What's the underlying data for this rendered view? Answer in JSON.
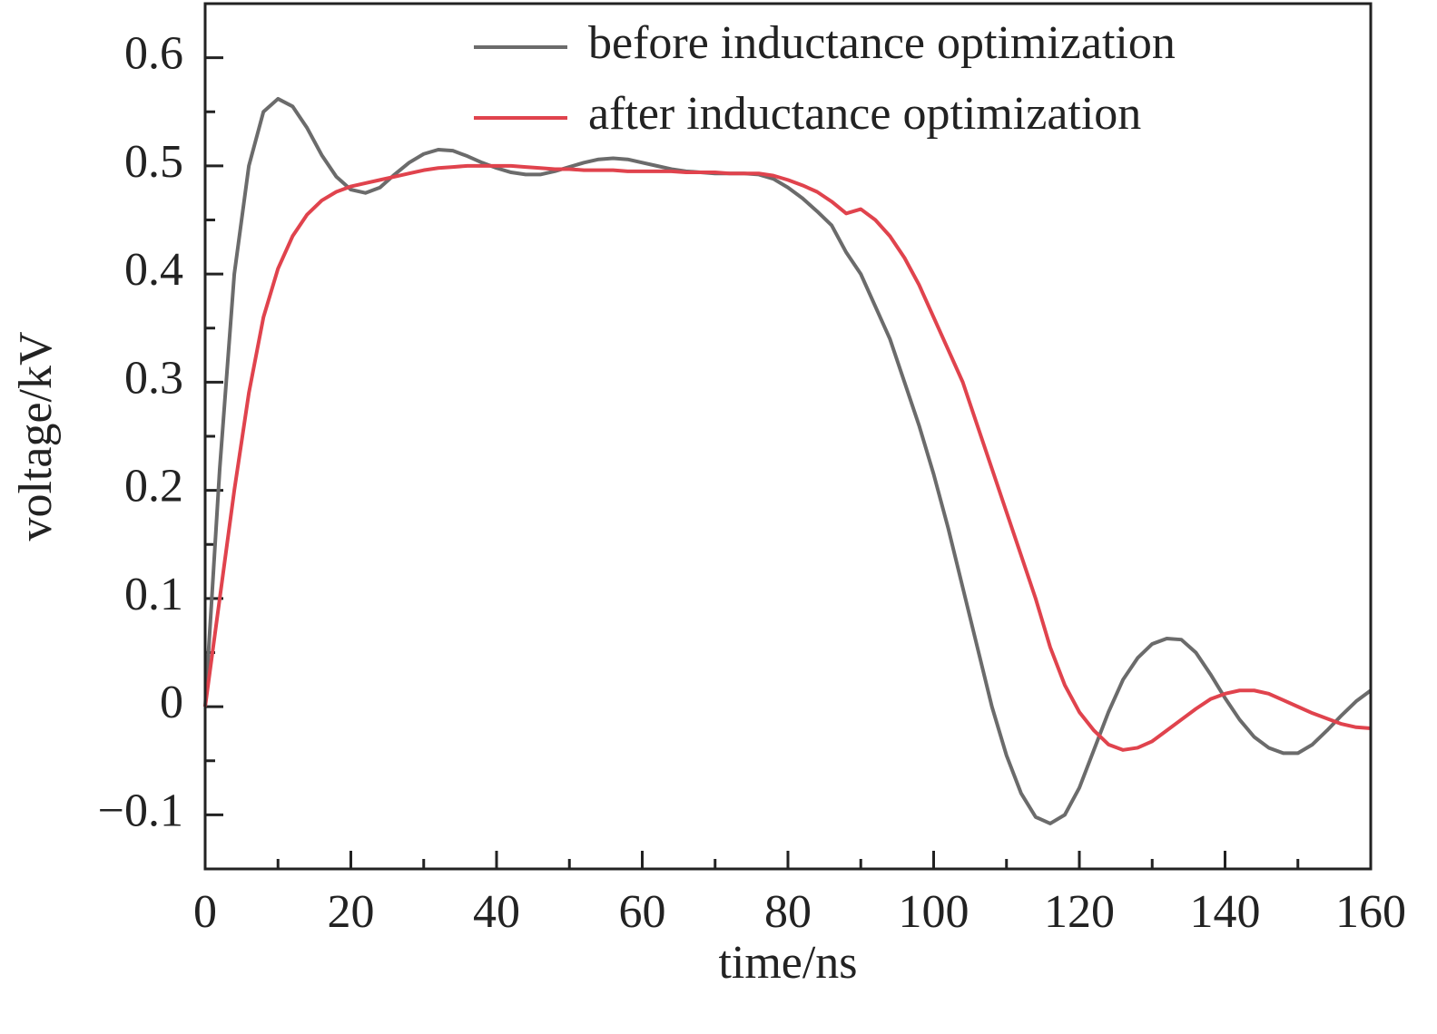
{
  "chart_data": {
    "type": "line",
    "xlabel": "time/ns",
    "ylabel": "voltage/kV",
    "x": [
      0,
      2,
      4,
      6,
      8,
      10,
      12,
      14,
      16,
      18,
      20,
      22,
      24,
      26,
      28,
      30,
      32,
      34,
      36,
      38,
      40,
      42,
      44,
      46,
      48,
      50,
      52,
      54,
      56,
      58,
      60,
      62,
      64,
      66,
      68,
      70,
      72,
      74,
      76,
      78,
      80,
      82,
      84,
      86,
      88,
      90,
      92,
      94,
      96,
      98,
      100,
      102,
      104,
      106,
      108,
      110,
      112,
      114,
      116,
      118,
      120,
      122,
      124,
      126,
      128,
      130,
      132,
      134,
      136,
      138,
      140,
      142,
      144,
      146,
      148,
      150,
      152,
      154,
      156,
      158,
      160
    ],
    "series": [
      {
        "name": "before inductance optimization",
        "color": "#6b6b6b",
        "values": [
          0,
          0.22,
          0.4,
          0.5,
          0.55,
          0.562,
          0.555,
          0.535,
          0.51,
          0.49,
          0.478,
          0.475,
          0.48,
          0.492,
          0.503,
          0.511,
          0.515,
          0.514,
          0.509,
          0.503,
          0.498,
          0.494,
          0.492,
          0.492,
          0.495,
          0.499,
          0.503,
          0.506,
          0.507,
          0.506,
          0.503,
          0.5,
          0.497,
          0.495,
          0.494,
          0.493,
          0.493,
          0.493,
          0.492,
          0.488,
          0.48,
          0.47,
          0.458,
          0.445,
          0.42,
          0.4,
          0.37,
          0.34,
          0.3,
          0.26,
          0.215,
          0.165,
          0.11,
          0.055,
          0.0,
          -0.045,
          -0.08,
          -0.102,
          -0.108,
          -0.1,
          -0.075,
          -0.04,
          -0.005,
          0.025,
          0.045,
          0.058,
          0.063,
          0.062,
          0.05,
          0.03,
          0.008,
          -0.012,
          -0.028,
          -0.038,
          -0.043,
          -0.043,
          -0.035,
          -0.022,
          -0.008,
          0.005,
          0.015
        ]
      },
      {
        "name": "after inductance optimization",
        "color": "#e0434d",
        "values": [
          0,
          0.1,
          0.2,
          0.29,
          0.36,
          0.405,
          0.435,
          0.455,
          0.468,
          0.476,
          0.481,
          0.484,
          0.487,
          0.49,
          0.493,
          0.496,
          0.498,
          0.499,
          0.5,
          0.5,
          0.5,
          0.5,
          0.499,
          0.498,
          0.497,
          0.497,
          0.496,
          0.496,
          0.496,
          0.495,
          0.495,
          0.495,
          0.495,
          0.494,
          0.494,
          0.494,
          0.493,
          0.493,
          0.493,
          0.491,
          0.487,
          0.482,
          0.476,
          0.467,
          0.456,
          0.46,
          0.45,
          0.435,
          0.415,
          0.39,
          0.36,
          0.33,
          0.3,
          0.26,
          0.22,
          0.18,
          0.14,
          0.1,
          0.055,
          0.02,
          -0.005,
          -0.022,
          -0.035,
          -0.04,
          -0.038,
          -0.032,
          -0.022,
          -0.012,
          -0.002,
          0.007,
          0.012,
          0.015,
          0.015,
          0.012,
          0.006,
          0.0,
          -0.006,
          -0.011,
          -0.016,
          -0.019,
          -0.02
        ]
      }
    ],
    "xlim": [
      0,
      160
    ],
    "xticks": [
      0,
      20,
      40,
      60,
      80,
      100,
      120,
      140,
      160
    ],
    "minor_xticks": [
      10,
      30,
      50,
      70,
      90,
      110,
      130,
      150
    ],
    "ylim": [
      -0.15,
      0.65
    ],
    "yticks": [
      {
        "value": -0.1,
        "label": "−0.1"
      },
      0,
      0.1,
      0.2,
      0.3,
      0.4,
      0.5,
      0.6
    ],
    "minor_yticks": [
      -0.15,
      -0.05,
      0.05,
      0.15,
      0.25,
      0.35,
      0.45,
      0.55,
      0.65
    ],
    "legend": "upper right",
    "grid": false
  }
}
